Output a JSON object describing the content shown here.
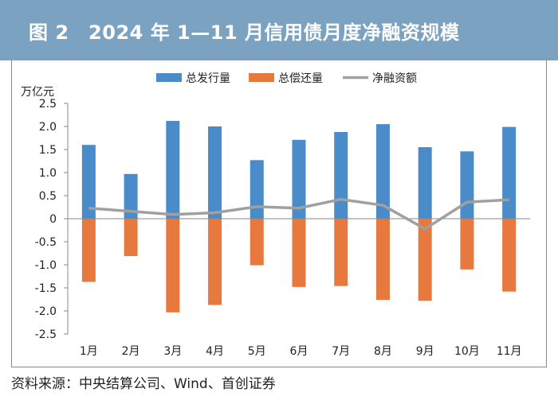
{
  "header": {
    "title": "图 2　2024 年 1—11 月信用债月度净融资规模"
  },
  "source_note": "资料来源：中央结算公司、Wind、首创证券",
  "colors": {
    "issuance": "#4a8bc9",
    "repayment": "#e8793e",
    "net": "#a0a0a0",
    "title_bg": "#7ba2c0"
  },
  "chart_data": {
    "type": "bar",
    "title": "图 2　2024 年 1—11 月信用债月度净融资规模",
    "ylabel": "万亿元",
    "xlabel": "",
    "ylim": [
      -2.5,
      2.5
    ],
    "yticks": [
      "2.5",
      "2.0",
      "1.5",
      "1.0",
      "0.5",
      "0",
      "-0.5",
      "-1.0",
      "-1.5",
      "-2.0",
      "-2.5"
    ],
    "ytick_values": [
      2.5,
      2.0,
      1.5,
      1.0,
      0.5,
      0,
      -0.5,
      -1.0,
      -1.5,
      -2.0,
      -2.5
    ],
    "categories": [
      "1月",
      "2月",
      "3月",
      "4月",
      "5月",
      "6月",
      "7月",
      "8月",
      "9月",
      "10月",
      "11月"
    ],
    "series": [
      {
        "name": "总发行量",
        "type": "bar",
        "values": [
          1.6,
          0.97,
          2.12,
          2.0,
          1.27,
          1.71,
          1.88,
          2.05,
          1.55,
          1.46,
          1.99
        ]
      },
      {
        "name": "总偿还量",
        "type": "bar",
        "values": [
          -1.37,
          -0.81,
          -2.03,
          -1.87,
          -1.01,
          -1.48,
          -1.46,
          -1.76,
          -1.78,
          -1.1,
          -1.58
        ]
      },
      {
        "name": "净融资额",
        "type": "line",
        "values": [
          0.23,
          0.16,
          0.09,
          0.13,
          0.26,
          0.23,
          0.42,
          0.29,
          -0.22,
          0.36,
          0.41
        ]
      }
    ],
    "legend_position": "top-center",
    "grid": false
  }
}
